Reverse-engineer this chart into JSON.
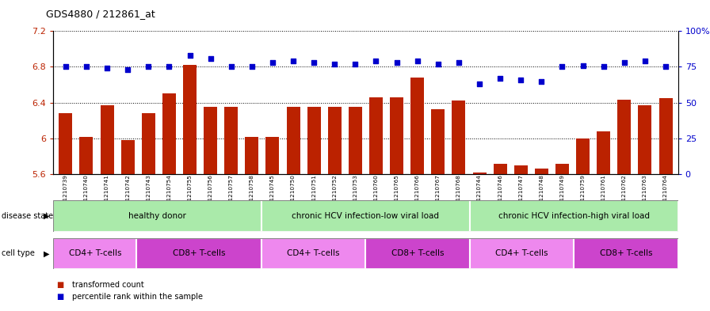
{
  "title": "GDS4880 / 212861_at",
  "samples": [
    "GSM1210739",
    "GSM1210740",
    "GSM1210741",
    "GSM1210742",
    "GSM1210743",
    "GSM1210754",
    "GSM1210755",
    "GSM1210756",
    "GSM1210757",
    "GSM1210758",
    "GSM1210745",
    "GSM1210750",
    "GSM1210751",
    "GSM1210752",
    "GSM1210753",
    "GSM1210760",
    "GSM1210765",
    "GSM1210766",
    "GSM1210767",
    "GSM1210768",
    "GSM1210744",
    "GSM1210746",
    "GSM1210747",
    "GSM1210748",
    "GSM1210749",
    "GSM1210759",
    "GSM1210761",
    "GSM1210762",
    "GSM1210763",
    "GSM1210764"
  ],
  "bar_values": [
    6.28,
    6.02,
    6.37,
    5.98,
    6.28,
    6.5,
    6.82,
    6.35,
    6.35,
    6.02,
    6.02,
    6.35,
    6.35,
    6.35,
    6.35,
    6.46,
    6.46,
    6.68,
    6.33,
    6.42,
    5.62,
    5.72,
    5.7,
    5.66,
    5.72,
    6.0,
    6.08,
    6.43,
    6.37,
    6.45
  ],
  "percentile_values": [
    75,
    75,
    74,
    73,
    75,
    75,
    83,
    81,
    75,
    75,
    78,
    79,
    78,
    77,
    77,
    79,
    78,
    79,
    77,
    78,
    63,
    67,
    66,
    65,
    75,
    76,
    75,
    78,
    79,
    75
  ],
  "ylim_left": [
    5.6,
    7.2
  ],
  "ylim_right": [
    0,
    100
  ],
  "yticks_left": [
    5.6,
    6.0,
    6.4,
    6.8,
    7.2
  ],
  "ytick_labels_left": [
    "5.6",
    "6",
    "6.4",
    "6.8",
    "7.2"
  ],
  "yticks_right": [
    0,
    25,
    50,
    75,
    100
  ],
  "ytick_labels_right": [
    "0",
    "25",
    "50",
    "75",
    "100%"
  ],
  "bar_color": "#bb2200",
  "scatter_color": "#0000cc",
  "plot_bg_color": "#ffffff",
  "fig_bg_color": "#ffffff",
  "tick_bg_color": "#d8d8d8",
  "disease_state_groups": [
    {
      "label": "healthy donor",
      "start": 0,
      "end": 10
    },
    {
      "label": "chronic HCV infection-low viral load",
      "start": 10,
      "end": 20
    },
    {
      "label": "chronic HCV infection-high viral load",
      "start": 20,
      "end": 30
    }
  ],
  "cell_type_groups": [
    {
      "label": "CD4+ T-cells",
      "start": 0,
      "end": 4
    },
    {
      "label": "CD8+ T-cells",
      "start": 4,
      "end": 10
    },
    {
      "label": "CD4+ T-cells",
      "start": 10,
      "end": 15
    },
    {
      "label": "CD8+ T-cells",
      "start": 15,
      "end": 20
    },
    {
      "label": "CD4+ T-cells",
      "start": 20,
      "end": 25
    },
    {
      "label": "CD8+ T-cells",
      "start": 25,
      "end": 30
    }
  ],
  "ds_color_light": "#aaeaaa",
  "ds_color_dark": "#55cc55",
  "ct_color_light": "#ee88ee",
  "ct_color_dark": "#cc44cc",
  "legend_items": [
    {
      "label": "transformed count",
      "color": "#bb2200"
    },
    {
      "label": "percentile rank within the sample",
      "color": "#0000cc"
    }
  ]
}
